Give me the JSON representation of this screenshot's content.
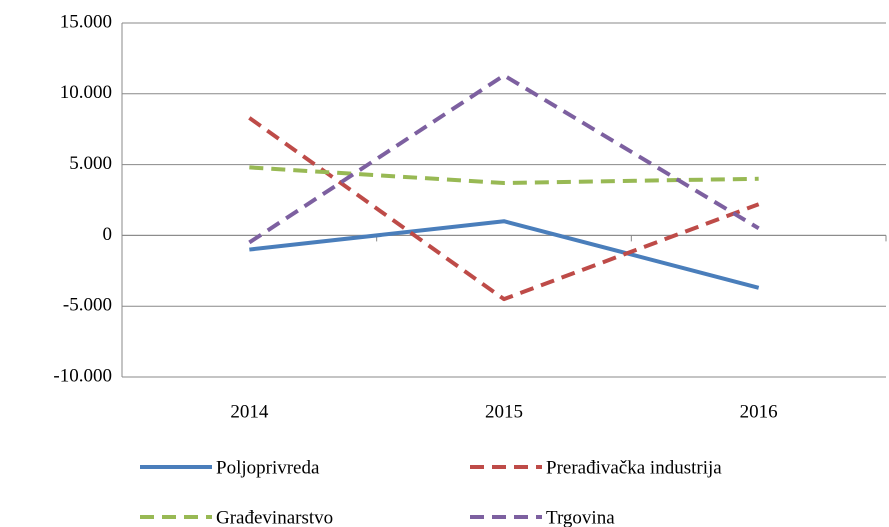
{
  "chart_data": {
    "type": "line",
    "categories": [
      "2014",
      "2015",
      "2016"
    ],
    "series": [
      {
        "name": "Poljoprivreda",
        "color": "#4a7ebb",
        "style": "solid",
        "values": [
          -1000,
          1000,
          -3700
        ]
      },
      {
        "name": "Prerađivačka industrija",
        "color": "#be4b48",
        "style": "dashed",
        "values": [
          8300,
          -4500,
          2200
        ]
      },
      {
        "name": "Građevinarstvo",
        "color": "#98b954",
        "style": "dashed",
        "values": [
          4800,
          3700,
          4000
        ]
      },
      {
        "name": "Trgovina",
        "color": "#7d60a0",
        "style": "dashed",
        "values": [
          -500,
          11300,
          500
        ]
      }
    ],
    "ylim": [
      -10000,
      15000
    ],
    "yticks": [
      {
        "value": -10000,
        "label": "-10.000"
      },
      {
        "value": -5000,
        "label": "-5.000"
      },
      0,
      {
        "value": 5000,
        "label": "5.000"
      },
      {
        "value": 10000,
        "label": "10.000"
      },
      {
        "value": 15000,
        "label": "15.000"
      }
    ],
    "grid": true
  }
}
